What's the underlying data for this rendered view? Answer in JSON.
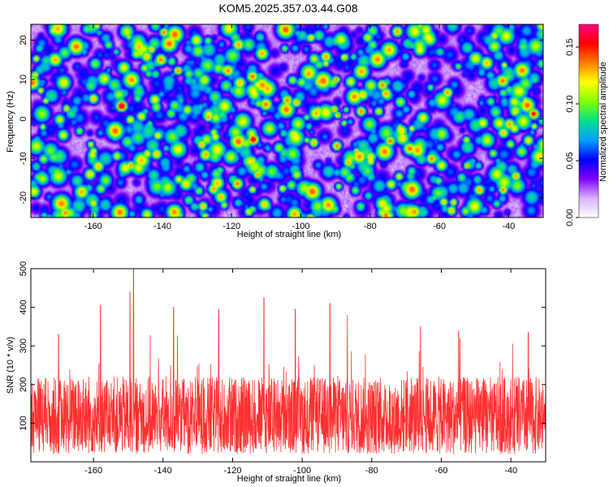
{
  "title": "KOM5.2025.357.03.44.G08",
  "chart_data": [
    {
      "type": "heatmap",
      "xlabel": "Height of straight line (km)",
      "ylabel": "Frequency (Hz)",
      "xlim": [
        -178,
        -30
      ],
      "ylim": [
        -25,
        24
      ],
      "xticks": [
        -160,
        -140,
        -120,
        -100,
        -80,
        -60,
        -40
      ],
      "xtick_labels": [
        "-160",
        "-140",
        "-120",
        "-100",
        "-80",
        "-60",
        "-40"
      ],
      "yticks": [
        -20,
        -10,
        0,
        10,
        20
      ],
      "ytick_labels": [
        "-20",
        "-10",
        "0",
        "10",
        "20"
      ],
      "colorbar": {
        "label": "Normalized spectral amplitude",
        "range": [
          0.0,
          0.17
        ],
        "ticks": [
          0.0,
          0.05,
          0.1,
          0.15
        ],
        "tick_labels": [
          "0.00",
          "0.05",
          "0.10",
          "0.15"
        ],
        "colormap": [
          "#ffffff",
          "#d9b3ff",
          "#8000ff",
          "#0000ff",
          "#00a0ff",
          "#00e08a",
          "#80ff00",
          "#ffff00",
          "#ff8000",
          "#ff0000",
          "#ff0080"
        ]
      },
      "hotspots": [
        {
          "x": -152,
          "y": 3.5,
          "v": 0.17
        },
        {
          "x": -133,
          "y": 2.5,
          "v": 0.11
        },
        {
          "x": -142,
          "y": 3.2,
          "v": 0.1
        },
        {
          "x": -114,
          "y": -5,
          "v": 0.16
        },
        {
          "x": -116,
          "y": -6,
          "v": 0.11
        },
        {
          "x": -98,
          "y": 11.5,
          "v": 0.13
        },
        {
          "x": -100,
          "y": 9.5,
          "v": 0.1
        },
        {
          "x": -93,
          "y": 16,
          "v": 0.13
        },
        {
          "x": -90,
          "y": 20,
          "v": 0.09
        },
        {
          "x": -33,
          "y": 1.5,
          "v": 0.15
        },
        {
          "x": -162,
          "y": 23,
          "v": 0.09
        },
        {
          "x": -147,
          "y": 8,
          "v": 0.08
        },
        {
          "x": -158,
          "y": -17.5,
          "v": 0.1
        },
        {
          "x": -175,
          "y": -14,
          "v": 0.08
        },
        {
          "x": -95,
          "y": 14,
          "v": 0.09
        },
        {
          "x": -83,
          "y": -22,
          "v": 0.09
        },
        {
          "x": -80,
          "y": -14.5,
          "v": 0.08
        },
        {
          "x": -128,
          "y": -14,
          "v": 0.07
        },
        {
          "x": -112,
          "y": 21,
          "v": 0.08
        },
        {
          "x": -70,
          "y": 16,
          "v": 0.07
        },
        {
          "x": -48,
          "y": 12,
          "v": 0.07
        },
        {
          "x": -60,
          "y": -7,
          "v": 0.07
        },
        {
          "x": -42,
          "y": -20,
          "v": 0.07
        },
        {
          "x": -37,
          "y": 4,
          "v": 0.09
        }
      ]
    },
    {
      "type": "line",
      "xlabel": "Height of straight line (km)",
      "ylabel": "SNR (10 * v/v)",
      "xlim": [
        -178,
        -30
      ],
      "ylim": [
        0,
        500
      ],
      "xticks": [
        -160,
        -140,
        -120,
        -100,
        -80,
        -60,
        -40
      ],
      "xtick_labels": [
        "-160",
        "-140",
        "-120",
        "-100",
        "-80",
        "-60",
        "-40"
      ],
      "yticks": [
        100,
        200,
        300,
        400,
        500
      ],
      "ytick_labels": [
        "100",
        "200",
        "300",
        "400",
        "500"
      ],
      "series": [
        {
          "color": "#ff3030",
          "typical_range": [
            20,
            220
          ],
          "peaks": [
            {
              "x": -148.5,
              "y": 500
            },
            {
              "x": -149.5,
              "y": 440
            },
            {
              "x": -158,
              "y": 405
            },
            {
              "x": -111,
              "y": 425
            },
            {
              "x": -92,
              "y": 410
            },
            {
              "x": -124,
              "y": 395
            },
            {
              "x": -102,
              "y": 395
            },
            {
              "x": -137,
              "y": 400
            },
            {
              "x": -170,
              "y": 330
            },
            {
              "x": -35,
              "y": 335
            },
            {
              "x": -87,
              "y": 380
            },
            {
              "x": -66,
              "y": 350
            },
            {
              "x": -55,
              "y": 340
            }
          ]
        }
      ]
    }
  ]
}
